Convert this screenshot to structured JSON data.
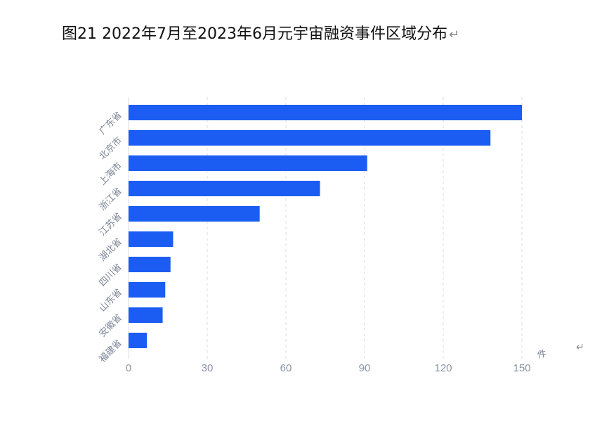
{
  "title": "图21 2022年7月至2023年6月元宇宙融资事件区域分布",
  "return_mark": "↵",
  "colors": {
    "bar": "#1b5cf2",
    "grid": "#d9dde6",
    "axis_text": "#8a94a6"
  },
  "chart_data": {
    "type": "bar",
    "orientation": "horizontal",
    "categories": [
      "广东省",
      "北京市",
      "上海市",
      "浙江省",
      "江苏省",
      "湖北省",
      "四川省",
      "山东省",
      "安徽省",
      "福建省"
    ],
    "values": [
      150,
      138,
      91,
      73,
      50,
      17,
      16,
      14,
      13,
      7
    ],
    "unit": "件",
    "xlim": [
      0,
      150
    ],
    "xticks": [
      0,
      30,
      60,
      90,
      120,
      150
    ],
    "grid": "vertical-dashed",
    "legend": "none"
  }
}
